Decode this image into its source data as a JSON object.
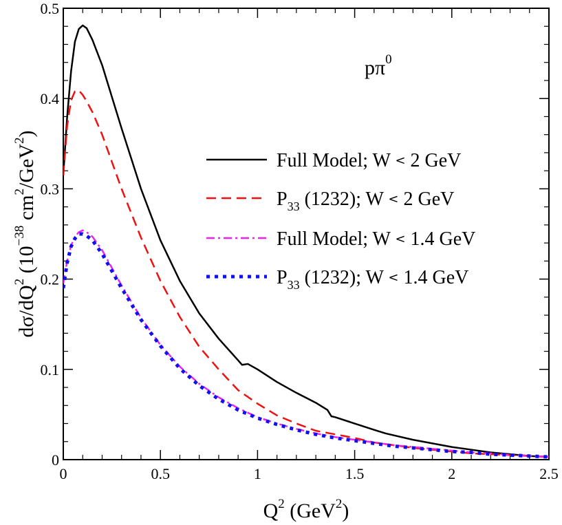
{
  "chart_data": {
    "type": "line",
    "title": "",
    "annotation": {
      "base": "pπ",
      "sup": "0"
    },
    "xlabel": {
      "base": "Q",
      "sup": "2",
      "rest_open": " (GeV",
      "rest_sup": "2",
      "rest_close": ")"
    },
    "ylabel": {
      "t1": "dσ/dQ",
      "s1": "2",
      "t2": " (10",
      "s2": "−38",
      "t3": " cm",
      "s3": "2",
      "t4": "/GeV",
      "s4": "2",
      "t5": ")"
    },
    "xlim": [
      0,
      2.5
    ],
    "ylim": [
      0,
      0.5
    ],
    "x_ticks": [
      0,
      0.5,
      1,
      1.5,
      2,
      2.5
    ],
    "x_tick_labels": [
      "0",
      "0.5",
      "1",
      "1.5",
      "2",
      "2.5"
    ],
    "y_ticks": [
      0,
      0.1,
      0.2,
      0.3,
      0.4,
      0.5
    ],
    "y_tick_labels": [
      "0",
      "0.1",
      "0.2",
      "0.3",
      "0.4",
      "0.5"
    ],
    "grid": false,
    "legend_position": "right",
    "series": [
      {
        "name": "Full Model; W < 2 GeV",
        "label_parts": {
          "pre": "Full Model; W ",
          "lt": "<",
          "post": " 2 GeV"
        },
        "color": "#000000",
        "style": "solid",
        "x": [
          0.0,
          0.02,
          0.04,
          0.06,
          0.08,
          0.1,
          0.12,
          0.15,
          0.2,
          0.25,
          0.3,
          0.4,
          0.5,
          0.6,
          0.7,
          0.8,
          0.9,
          0.92,
          0.95,
          1.0,
          1.1,
          1.2,
          1.3,
          1.36,
          1.38,
          1.4,
          1.5,
          1.6,
          1.66,
          1.7,
          1.8,
          1.9,
          2.0,
          2.1,
          2.2,
          2.3,
          2.4,
          2.5
        ],
        "y": [
          0.315,
          0.38,
          0.43,
          0.463,
          0.477,
          0.481,
          0.478,
          0.465,
          0.437,
          0.402,
          0.367,
          0.3,
          0.243,
          0.198,
          0.162,
          0.134,
          0.11,
          0.105,
          0.106,
          0.1,
          0.086,
          0.074,
          0.063,
          0.055,
          0.048,
          0.047,
          0.04,
          0.033,
          0.029,
          0.027,
          0.022,
          0.018,
          0.014,
          0.011,
          0.008,
          0.006,
          0.004,
          0.003
        ]
      },
      {
        "name": "P33 (1232); W < 2 GeV",
        "label_parts": {
          "pre": "P",
          "sub": "33",
          "post_pre": " (1232); W ",
          "lt": "<",
          "post": " 2 GeV"
        },
        "color": "#ee1111",
        "style": "dashed",
        "x": [
          0.0,
          0.02,
          0.04,
          0.06,
          0.08,
          0.1,
          0.12,
          0.15,
          0.2,
          0.3,
          0.4,
          0.5,
          0.6,
          0.7,
          0.8,
          0.9,
          1.0,
          1.1,
          1.2,
          1.3,
          1.4,
          1.5,
          1.6,
          1.7,
          1.8,
          1.9,
          2.0,
          2.1,
          2.2,
          2.3,
          2.4,
          2.5
        ],
        "y": [
          0.315,
          0.37,
          0.398,
          0.408,
          0.409,
          0.404,
          0.397,
          0.385,
          0.36,
          0.3,
          0.246,
          0.198,
          0.158,
          0.125,
          0.1,
          0.077,
          0.062,
          0.049,
          0.04,
          0.032,
          0.028,
          0.024,
          0.019,
          0.016,
          0.013,
          0.011,
          0.009,
          0.007,
          0.006,
          0.005,
          0.004,
          0.003
        ]
      },
      {
        "name": "Full Model; W < 1.4 GeV",
        "label_parts": {
          "pre": "Full Model; W ",
          "lt": "<",
          "post": " 1.4 GeV"
        },
        "color": "#ee22ee",
        "style": "dashdot",
        "x": [
          0.0,
          0.02,
          0.04,
          0.06,
          0.08,
          0.1,
          0.12,
          0.15,
          0.2,
          0.3,
          0.4,
          0.5,
          0.6,
          0.7,
          0.8,
          0.9,
          1.0,
          1.1,
          1.2,
          1.3,
          1.4,
          1.5,
          1.6,
          1.7,
          1.8,
          1.9,
          2.0,
          2.1,
          2.2,
          2.3,
          2.4,
          2.5
        ],
        "y": [
          0.195,
          0.22,
          0.237,
          0.247,
          0.252,
          0.254,
          0.252,
          0.247,
          0.232,
          0.193,
          0.157,
          0.127,
          0.103,
          0.084,
          0.069,
          0.057,
          0.047,
          0.04,
          0.034,
          0.029,
          0.025,
          0.022,
          0.019,
          0.016,
          0.014,
          0.012,
          0.01,
          0.008,
          0.007,
          0.005,
          0.004,
          0.003
        ]
      },
      {
        "name": "P33 (1232); W < 1.4 GeV",
        "label_parts": {
          "pre": "P",
          "sub": "33",
          "post_pre": " (1232); W ",
          "lt": "<",
          "post": " 1.4 GeV"
        },
        "color": "#1111ee",
        "style": "dotted",
        "x": [
          0.0,
          0.02,
          0.04,
          0.06,
          0.08,
          0.1,
          0.12,
          0.15,
          0.2,
          0.3,
          0.4,
          0.5,
          0.6,
          0.7,
          0.8,
          0.9,
          1.0,
          1.1,
          1.2,
          1.3,
          1.4,
          1.5,
          1.6,
          1.7,
          1.8,
          1.9,
          2.0,
          2.1,
          2.2,
          2.3,
          2.4,
          2.5
        ],
        "y": [
          0.19,
          0.218,
          0.236,
          0.245,
          0.25,
          0.25,
          0.248,
          0.243,
          0.228,
          0.19,
          0.155,
          0.126,
          0.101,
          0.082,
          0.067,
          0.055,
          0.046,
          0.039,
          0.033,
          0.028,
          0.024,
          0.021,
          0.018,
          0.015,
          0.013,
          0.011,
          0.009,
          0.008,
          0.006,
          0.005,
          0.004,
          0.003
        ]
      }
    ]
  }
}
